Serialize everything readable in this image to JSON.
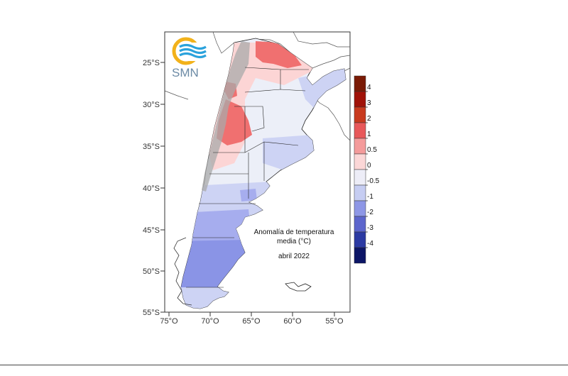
{
  "logo": {
    "text": "SMN"
  },
  "annotation": {
    "line1": "Anomalía de temperatura",
    "line2": "media (°C)",
    "line3": "abril 2022"
  },
  "axes": {
    "y_ticks": [
      "25°S",
      "30°S",
      "35°S",
      "40°S",
      "45°S",
      "50°S",
      "55°S"
    ],
    "x_ticks": [
      "75°O",
      "70°O",
      "65°O",
      "60°O",
      "55°O"
    ]
  },
  "legend": {
    "labels": [
      "4",
      "3",
      "2",
      "1",
      "0.5",
      "0",
      "-0.5",
      "-1",
      "-2",
      "-3",
      "-4"
    ],
    "colors": [
      "#7a1a05",
      "#a01208",
      "#c83a1e",
      "#e8585a",
      "#f49b9b",
      "#fbd7d7",
      "#ededf7",
      "#c6cdf2",
      "#8e97e6",
      "#5c65cc",
      "#2c3aa3",
      "#0c1566"
    ]
  },
  "colors": {
    "warm_strong": "#f07070",
    "warm_light": "#fcd5d5",
    "neutral": "#eceff8",
    "cool_light": "#cdd3f4",
    "cool_medium": "#a6adee",
    "cool_strong": "#8a94e6",
    "mountains": "#aaaaaa"
  }
}
